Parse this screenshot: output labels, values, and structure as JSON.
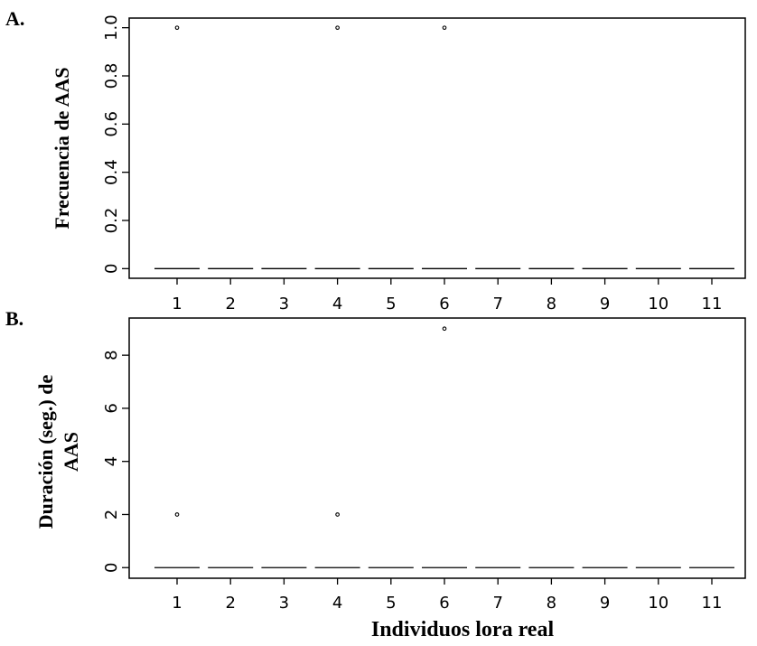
{
  "chart_data": [
    {
      "type": "box",
      "panel_letter": "A.",
      "title": "",
      "xlabel": "",
      "ylabel": "Frecuencia de AAS",
      "ylim": [
        -0.04,
        1.04
      ],
      "yticks": [
        0,
        0.2,
        0.4,
        0.6,
        0.8,
        1.0
      ],
      "ytick_labels": [
        "0",
        "0.2",
        "0.4",
        "0.6",
        "0.8",
        "1.0"
      ],
      "categories": [
        "1",
        "2",
        "3",
        "4",
        "5",
        "6",
        "7",
        "8",
        "9",
        "10",
        "11"
      ],
      "medians": [
        0,
        0,
        0,
        0,
        0,
        0,
        0,
        0,
        0,
        0,
        0
      ],
      "outliers": [
        {
          "category": "1",
          "value": 1.0
        },
        {
          "category": "4",
          "value": 1.0
        },
        {
          "category": "6",
          "value": 1.0
        }
      ],
      "grid": false,
      "legend": "none"
    },
    {
      "type": "box",
      "panel_letter": "B.",
      "title": "",
      "xlabel": "Individuos lora real",
      "ylabel_lines": [
        "Duración (seg.) de",
        "AAS"
      ],
      "ylim": [
        -0.4,
        9.4
      ],
      "yticks": [
        0,
        2,
        4,
        6,
        8
      ],
      "ytick_labels": [
        "0",
        "2",
        "4",
        "6",
        "8"
      ],
      "categories": [
        "1",
        "2",
        "3",
        "4",
        "5",
        "6",
        "7",
        "8",
        "9",
        "10",
        "11"
      ],
      "medians": [
        0,
        0,
        0,
        0,
        0,
        0,
        0,
        0,
        0,
        0,
        0
      ],
      "outliers": [
        {
          "category": "1",
          "value": 2
        },
        {
          "category": "4",
          "value": 2
        },
        {
          "category": "6",
          "value": 9
        }
      ],
      "grid": false,
      "legend": "none"
    }
  ]
}
